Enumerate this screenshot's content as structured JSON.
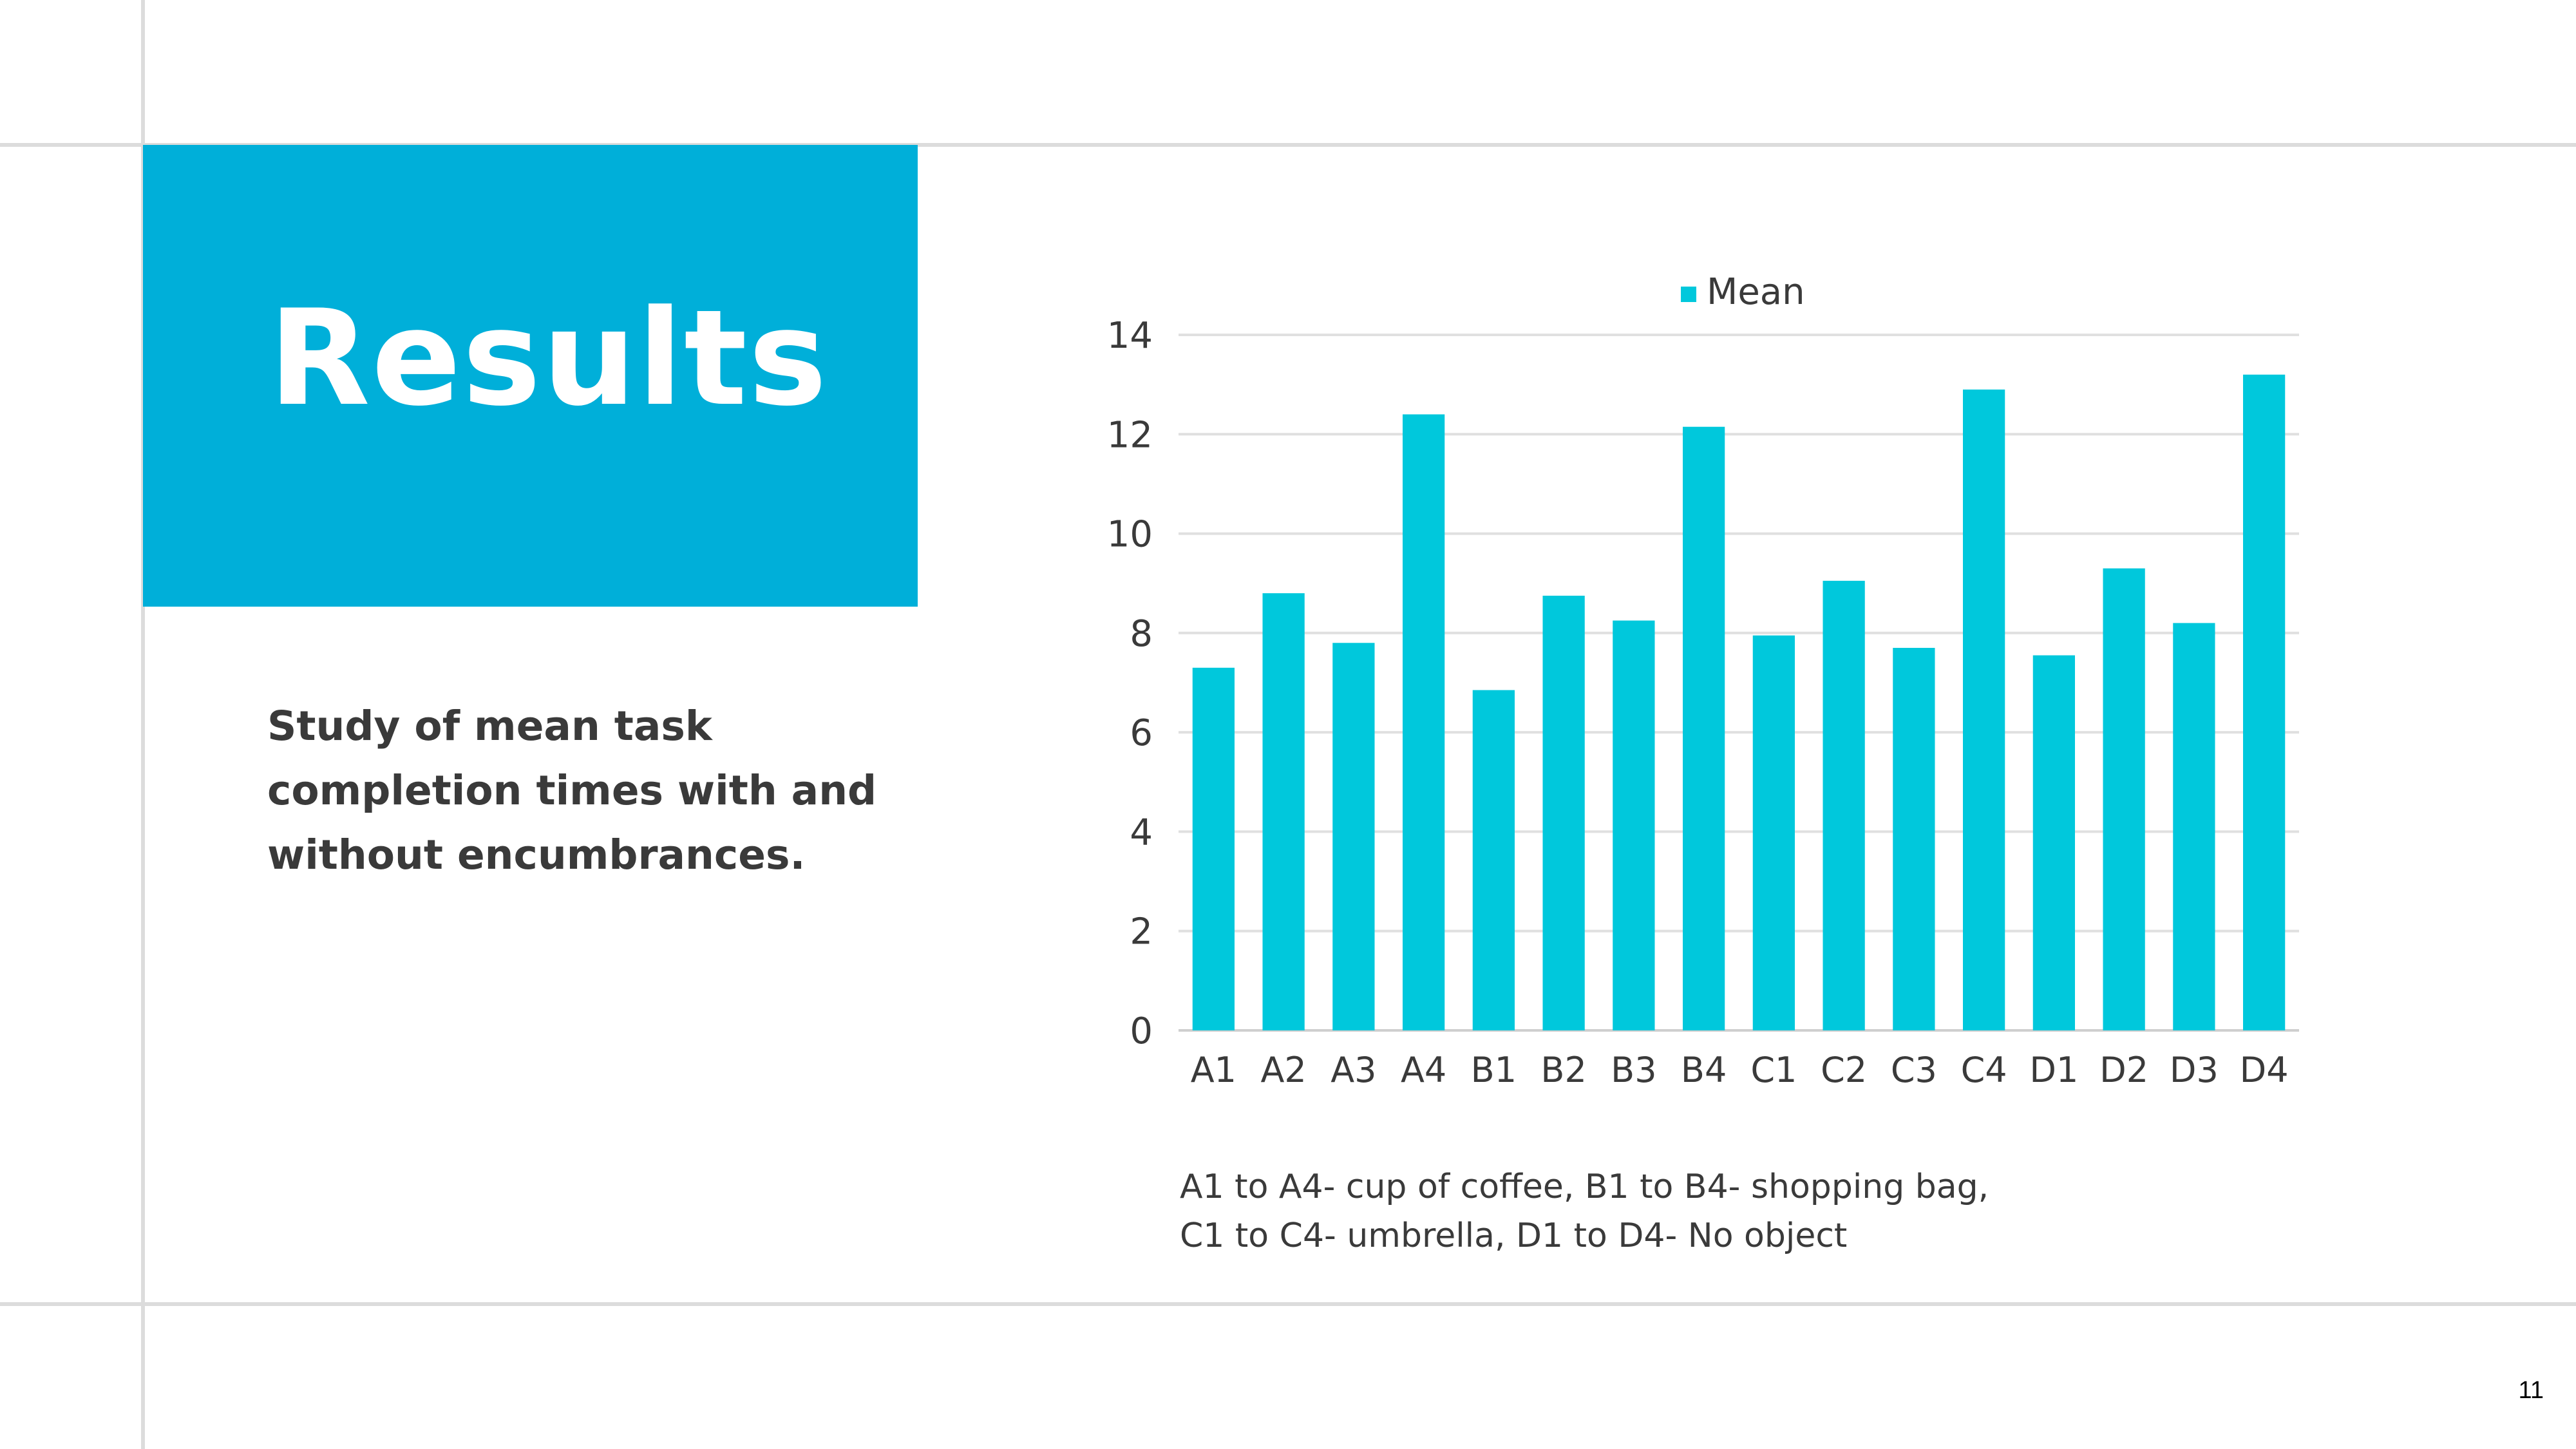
{
  "slide": {
    "title": "Results",
    "description": "Study of mean task completion times with and without encumbrances.",
    "footnote_lines": [
      "A1 to A4- cup of coffee, B1 to B4- shopping bag,",
      "C1 to C4- umbrella, D1 to D4- No object"
    ],
    "page_number": "11"
  },
  "colors": {
    "title_box": "#00afd9",
    "bar": "#00c8dc",
    "gridline": "#e0e0e0",
    "text": "#3a3a3a"
  },
  "chart_data": {
    "type": "bar",
    "categories": [
      "A1",
      "A2",
      "A3",
      "A4",
      "B1",
      "B2",
      "B3",
      "B4",
      "C1",
      "C2",
      "C3",
      "C4",
      "D1",
      "D2",
      "D3",
      "D4"
    ],
    "series": [
      {
        "name": "Mean",
        "values": [
          7.3,
          8.8,
          7.8,
          12.4,
          6.85,
          8.75,
          8.25,
          12.15,
          7.95,
          9.05,
          7.7,
          12.9,
          7.55,
          9.3,
          8.2,
          13.2
        ]
      }
    ],
    "ylim": [
      0,
      14
    ],
    "yticks": [
      0,
      2,
      4,
      6,
      8,
      10,
      12,
      14
    ],
    "grid": true,
    "legend": "top-center"
  }
}
